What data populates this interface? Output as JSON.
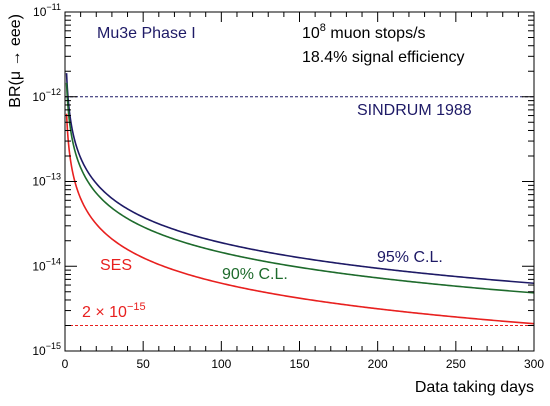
{
  "chart_data": {
    "type": "line",
    "title": "",
    "xlabel": "Data taking days",
    "ylabel": "BR(μ → eee)",
    "xlim": [
      0,
      300
    ],
    "ylim": [
      1e-15,
      1e-11
    ],
    "y_scale": "log",
    "grid": false,
    "x_ticks": [
      0,
      50,
      100,
      150,
      200,
      250,
      300
    ],
    "x_tick_labels": [
      "0",
      "50",
      "100",
      "150",
      "200",
      "250",
      "300"
    ],
    "y_ticks": [
      {
        "value": 1e-15,
        "base": "10",
        "exp": "−15"
      },
      {
        "value": 1e-14,
        "base": "10",
        "exp": "−14"
      },
      {
        "value": 1e-13,
        "base": "10",
        "exp": "−13"
      },
      {
        "value": 1e-12,
        "base": "10",
        "exp": "−12"
      },
      {
        "value": 1e-11,
        "base": "10",
        "exp": "−11"
      }
    ],
    "series": [
      {
        "name": "95% C.L.",
        "color": "#1e1a66",
        "style": "solid",
        "value_at_1_day": 1.9e-12,
        "value_at_300_days": 6.3e-15
      },
      {
        "name": "90% C.L.",
        "color": "#1e6b2c",
        "style": "solid",
        "value_at_1_day": 1.46e-12,
        "value_at_300_days": 4.85e-15
      },
      {
        "name": "SES",
        "color": "#e8201f",
        "style": "solid",
        "value_at_1_day": 6.3e-13,
        "value_at_300_days": 2.1e-15
      },
      {
        "name": "SINDRUM 1988",
        "color": "#1e1a66",
        "style": "dashed",
        "value": 1e-12
      },
      {
        "name": "2 × 10−15",
        "color": "#e8201f",
        "style": "dashed",
        "value": 2e-15
      }
    ],
    "annotations": {
      "experiment": "Mu3e Phase I",
      "rate_base": "10",
      "rate_exp": "8",
      "rate_rest": " muon stops/s",
      "efficiency": "18.4% signal efficiency",
      "sindrum": "SINDRUM 1988",
      "cl95": "95% C.L.",
      "cl90": "90% C.L.",
      "ses": "SES",
      "limit_base": "2 × 10",
      "limit_exp": "−15"
    }
  }
}
